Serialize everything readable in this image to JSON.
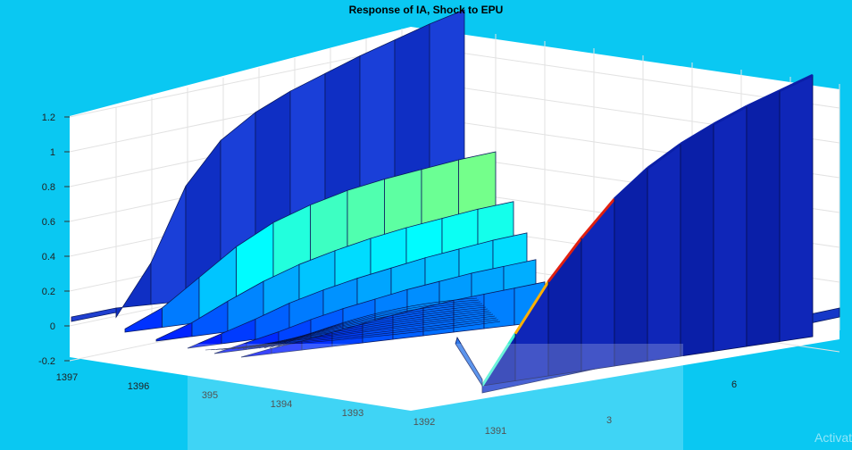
{
  "chart_data": {
    "type": "surface",
    "title": "Response of IA, Shock to EPU",
    "z_ticks": [
      "-0.2",
      "0",
      "0.2",
      "0.4",
      "0.6",
      "0.8",
      "1",
      "1.2"
    ],
    "zlim": [
      -0.2,
      1.2
    ],
    "x_axis": {
      "ticks": [
        "1397",
        "1396",
        "395",
        "1394",
        "1393",
        "1392",
        "1391"
      ]
    },
    "y_axis": {
      "ticks": [
        "3",
        "6"
      ]
    },
    "grid": true,
    "colormap": "jet",
    "series": [
      {
        "values": [
          0.05,
          0.3,
          0.68,
          0.88,
          0.98,
          1.04,
          1.08,
          1.12,
          1.15,
          1.18,
          1.2
        ]
      },
      {
        "values": [
          0.02,
          0.12,
          0.28,
          0.44,
          0.56,
          0.64,
          0.7,
          0.74,
          0.77,
          0.8,
          0.82
        ]
      },
      {
        "values": [
          0.01,
          0.09,
          0.2,
          0.3,
          0.38,
          0.44,
          0.49,
          0.53,
          0.56,
          0.59,
          0.61
        ]
      },
      {
        "values": [
          0.0,
          0.07,
          0.14,
          0.22,
          0.28,
          0.33,
          0.37,
          0.41,
          0.44,
          0.47,
          0.49
        ]
      },
      {
        "values": [
          0.0,
          0.05,
          0.1,
          0.16,
          0.21,
          0.25,
          0.29,
          0.32,
          0.35,
          0.37,
          0.39
        ]
      },
      {
        "values": [
          0.0,
          0.04,
          0.07,
          0.11,
          0.15,
          0.19,
          0.22,
          0.25,
          0.27,
          0.29,
          0.31
        ]
      },
      {
        "values": [
          0.0,
          0.22,
          0.44,
          0.62,
          0.78,
          0.9,
          0.99,
          1.06,
          1.12,
          1.17,
          1.22
        ]
      }
    ]
  },
  "watermark": "Activat"
}
